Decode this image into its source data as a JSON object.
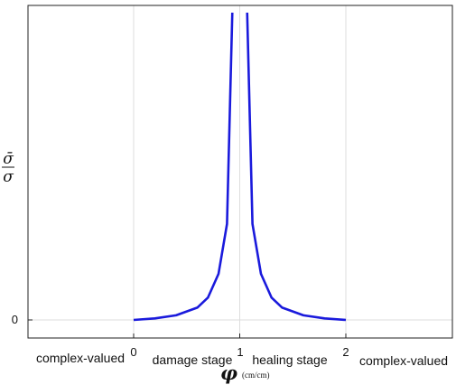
{
  "chart_data": {
    "type": "line",
    "title": "",
    "xlabel": {
      "symbol": "φ",
      "unit": "(cm/cm)"
    },
    "ylabel": {
      "numerator": "σ̄",
      "denominator": "σ"
    },
    "xlim": [
      -1.0,
      2.0
    ],
    "ylim_note": "curve diverges toward infinity near x = 1",
    "x_ticks": [
      "0",
      "1",
      "2"
    ],
    "y_ticks": [
      "0"
    ],
    "grid": true,
    "regions": [
      {
        "label": "complex-valued"
      },
      {
        "label": "damage stage"
      },
      {
        "label": "healing stage"
      },
      {
        "label": "complex-valued"
      }
    ],
    "series": [
      {
        "color": "#1a1adc",
        "left_branch": {
          "x": [
            0.0,
            0.2,
            0.4,
            0.6,
            0.7,
            0.8,
            0.88,
            0.93
          ],
          "y": [
            0.0,
            0.2,
            0.6,
            1.6,
            2.9,
            6.0,
            12.5,
            40.0
          ]
        },
        "right_branch": {
          "x": [
            1.07,
            1.12,
            1.2,
            1.3,
            1.4,
            1.6,
            1.8,
            2.0
          ],
          "y": [
            40.0,
            12.5,
            6.0,
            2.9,
            1.6,
            0.6,
            0.2,
            0.0
          ]
        }
      }
    ]
  }
}
